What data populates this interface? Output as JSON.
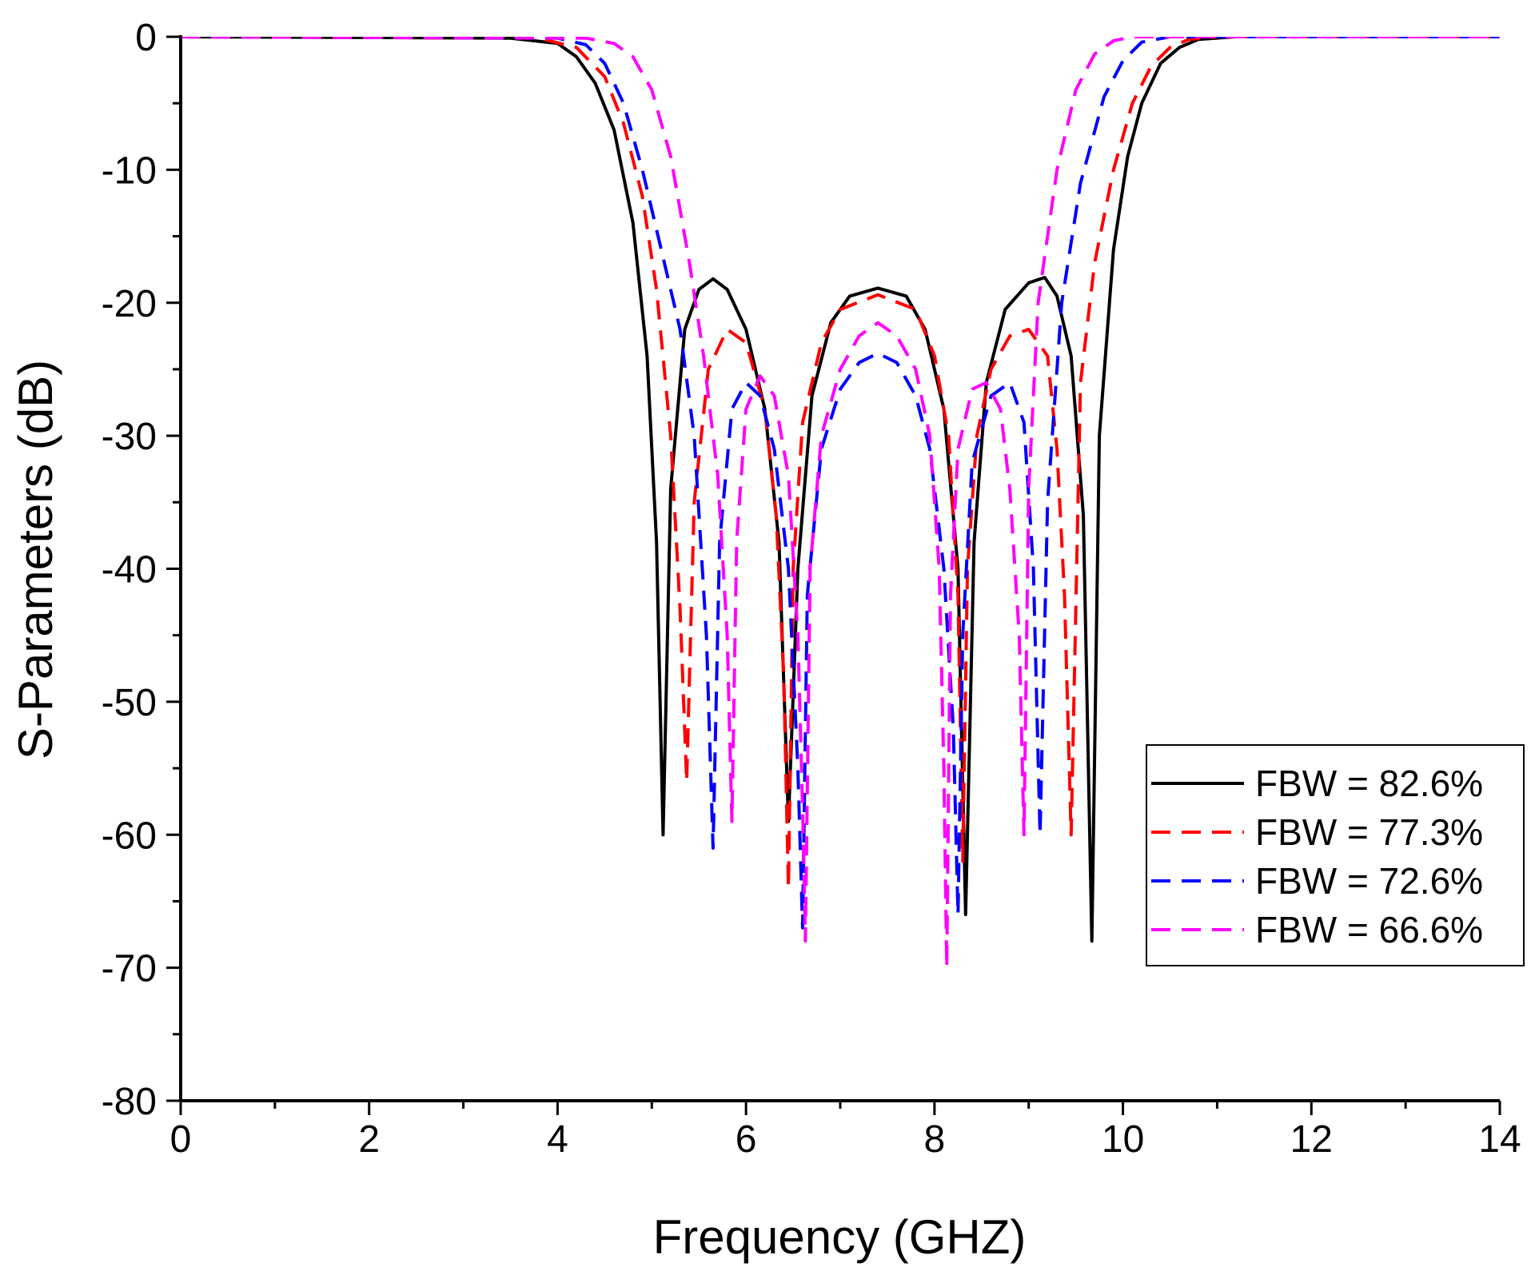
{
  "chart_data": {
    "type": "line",
    "title": "",
    "xlabel": "Frequency (GHZ)",
    "ylabel": "S-Parameters (dB)",
    "xlim": [
      0,
      14
    ],
    "ylim": [
      -80,
      0
    ],
    "xticks": [
      0,
      2,
      4,
      6,
      8,
      10,
      12,
      14
    ],
    "yticks": [
      0,
      -10,
      -20,
      -30,
      -40,
      -50,
      -60,
      -70,
      -80
    ],
    "xtick_labels": [
      "0",
      "2",
      "4",
      "6",
      "8",
      "10",
      "12",
      "14"
    ],
    "ytick_labels": [
      "0",
      "-10",
      "-20",
      "-30",
      "-40",
      "-50",
      "-60",
      "-70",
      "-80"
    ],
    "grid": false,
    "legend_position": "right-middle",
    "series": [
      {
        "name": "FBW = 82.6%",
        "color": "#000000",
        "dash": "solid",
        "x": [
          0,
          3.5,
          4.0,
          4.2,
          4.4,
          4.6,
          4.8,
          4.95,
          5.05,
          5.12,
          5.2,
          5.35,
          5.5,
          5.65,
          5.8,
          6.0,
          6.2,
          6.35,
          6.45,
          6.55,
          6.7,
          6.9,
          7.1,
          7.4,
          7.7,
          7.9,
          8.1,
          8.25,
          8.33,
          8.42,
          8.55,
          8.75,
          9.0,
          9.17,
          9.3,
          9.45,
          9.58,
          9.67,
          9.75,
          9.9,
          10.05,
          10.2,
          10.4,
          10.6,
          10.8,
          11.2,
          14
        ],
        "y": [
          0,
          -0.1,
          -0.5,
          -1.5,
          -3.5,
          -7,
          -14,
          -24,
          -38,
          -60,
          -34,
          -22,
          -19,
          -18.2,
          -19,
          -22,
          -28,
          -38,
          -59,
          -40,
          -27,
          -21.5,
          -19.5,
          -18.9,
          -19.5,
          -22,
          -28,
          -40,
          -66,
          -38,
          -26,
          -20.5,
          -18.5,
          -18.1,
          -19.5,
          -24,
          -36,
          -68,
          -30,
          -16,
          -9,
          -5,
          -2,
          -0.8,
          -0.2,
          0,
          0
        ]
      },
      {
        "name": "FBW = 77.3%",
        "color": "#ff0000",
        "dash": "dashed",
        "x": [
          0,
          3.8,
          4.2,
          4.5,
          4.7,
          4.9,
          5.05,
          5.2,
          5.3,
          5.37,
          5.45,
          5.6,
          5.8,
          6.0,
          6.2,
          6.32,
          6.4,
          6.45,
          6.5,
          6.6,
          6.8,
          7.0,
          7.4,
          7.8,
          8.0,
          8.15,
          8.25,
          8.3,
          8.35,
          8.45,
          8.6,
          8.8,
          9.0,
          9.2,
          9.3,
          9.38,
          9.45,
          9.55,
          9.7,
          9.9,
          10.1,
          10.3,
          10.5,
          10.7,
          11.0,
          14
        ],
        "y": [
          0,
          -0.1,
          -0.8,
          -3,
          -6.5,
          -12,
          -19,
          -30,
          -43,
          -56,
          -35,
          -25,
          -22,
          -23,
          -28,
          -36,
          -48,
          -64,
          -40,
          -29,
          -23,
          -20.5,
          -19.4,
          -20.5,
          -24,
          -30,
          -42,
          -62,
          -40,
          -30,
          -25,
          -22.5,
          -22,
          -24,
          -31,
          -42,
          -60,
          -26,
          -17,
          -10,
          -5,
          -2.2,
          -0.8,
          -0.2,
          0,
          0
        ]
      },
      {
        "name": "FBW = 72.6%",
        "color": "#0000ff",
        "dash": "dashed",
        "x": [
          0,
          4.0,
          4.3,
          4.5,
          4.7,
          4.9,
          5.1,
          5.3,
          5.45,
          5.58,
          5.65,
          5.72,
          5.85,
          6.0,
          6.15,
          6.3,
          6.45,
          6.55,
          6.6,
          6.65,
          6.8,
          7.0,
          7.2,
          7.4,
          7.6,
          7.8,
          7.95,
          8.1,
          8.2,
          8.25,
          8.3,
          8.4,
          8.6,
          8.8,
          8.95,
          9.05,
          9.12,
          9.2,
          9.35,
          9.55,
          9.8,
          10.0,
          10.2,
          10.5,
          14
        ],
        "y": [
          0,
          -0.1,
          -0.6,
          -2,
          -5,
          -10,
          -16,
          -22,
          -30,
          -45,
          -61,
          -38,
          -28,
          -26,
          -27,
          -31,
          -40,
          -55,
          -67,
          -42,
          -31,
          -26.5,
          -24.5,
          -23.8,
          -24.5,
          -27,
          -31,
          -40,
          -52,
          -66,
          -45,
          -32,
          -27,
          -26,
          -29,
          -40,
          -60,
          -35,
          -20,
          -11,
          -4.5,
          -1.8,
          -0.4,
          0,
          0
        ]
      },
      {
        "name": "FBW = 66.6%",
        "color": "#ff00ff",
        "dash": "dashed",
        "x": [
          0,
          4.3,
          4.6,
          4.8,
          5.0,
          5.2,
          5.4,
          5.55,
          5.7,
          5.8,
          5.85,
          5.9,
          6.0,
          6.15,
          6.3,
          6.45,
          6.55,
          6.6,
          6.63,
          6.68,
          6.8,
          7.0,
          7.2,
          7.4,
          7.6,
          7.8,
          7.95,
          8.05,
          8.1,
          8.13,
          8.17,
          8.25,
          8.4,
          8.55,
          8.7,
          8.8,
          8.9,
          8.95,
          9.0,
          9.1,
          9.3,
          9.5,
          9.7,
          9.9,
          10.1,
          10.3,
          14
        ],
        "y": [
          0,
          -0.1,
          -0.5,
          -1.5,
          -4,
          -9,
          -17,
          -24,
          -33,
          -45,
          -59,
          -38,
          -28,
          -25.5,
          -27,
          -33,
          -45,
          -58,
          -68,
          -40,
          -30,
          -25,
          -22.5,
          -21.5,
          -22.5,
          -25,
          -30,
          -40,
          -55,
          -70,
          -42,
          -31,
          -26.5,
          -26,
          -28,
          -34,
          -45,
          -60,
          -34,
          -20,
          -10,
          -4,
          -1.3,
          -0.3,
          0,
          0,
          0
        ]
      }
    ]
  }
}
